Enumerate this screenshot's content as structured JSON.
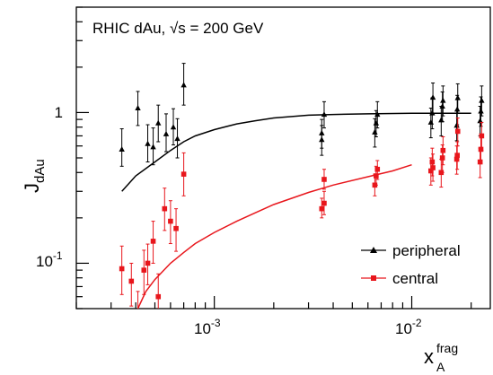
{
  "chart_data": {
    "type": "scatter",
    "title": "",
    "annotation": "RHIC dAu, √s = 200 GeV",
    "xlabel": {
      "base": "x",
      "sub": "A",
      "sup": "frag"
    },
    "ylabel": {
      "base": "J",
      "sub": "dAu"
    },
    "xscale": "log",
    "yscale": "log",
    "xlim": [
      0.0002,
      0.025
    ],
    "ylim": [
      0.05,
      5
    ],
    "x_ticks": [
      {
        "value": 0.001,
        "base": "10",
        "exp": "-3"
      },
      {
        "value": 0.01,
        "base": "10",
        "exp": "-2"
      }
    ],
    "y_ticks": [
      {
        "value": 0.1,
        "base": "10",
        "exp": "-1"
      },
      {
        "value": 1,
        "label": "1"
      }
    ],
    "grid": false,
    "legend_position": "bottom-right",
    "series": [
      {
        "name": "peripheral",
        "marker": "triangle",
        "color": "#000000",
        "points": [
          {
            "x": 0.00034,
            "y": 0.57,
            "lo": 0.44,
            "hi": 0.78
          },
          {
            "x": 0.00041,
            "y": 1.07,
            "lo": 0.82,
            "hi": 1.38
          },
          {
            "x": 0.00046,
            "y": 0.62,
            "lo": 0.47,
            "hi": 0.83
          },
          {
            "x": 0.00049,
            "y": 0.59,
            "lo": 0.45,
            "hi": 0.79
          },
          {
            "x": 0.00052,
            "y": 0.85,
            "lo": 0.64,
            "hi": 1.12
          },
          {
            "x": 0.00057,
            "y": 0.72,
            "lo": 0.55,
            "hi": 0.98
          },
          {
            "x": 0.00062,
            "y": 0.8,
            "lo": 0.61,
            "hi": 1.06
          },
          {
            "x": 0.00065,
            "y": 0.67,
            "lo": 0.5,
            "hi": 0.91
          },
          {
            "x": 0.0007,
            "y": 1.52,
            "lo": 1.12,
            "hi": 2.12
          },
          {
            "x": 0.0035,
            "y": 0.73,
            "lo": 0.58,
            "hi": 0.9
          },
          {
            "x": 0.0035,
            "y": 0.66,
            "lo": 0.52,
            "hi": 0.82
          },
          {
            "x": 0.0036,
            "y": 0.97,
            "lo": 0.79,
            "hi": 1.18
          },
          {
            "x": 0.0065,
            "y": 0.74,
            "lo": 0.59,
            "hi": 0.91
          },
          {
            "x": 0.0066,
            "y": 0.85,
            "lo": 0.69,
            "hi": 1.03
          },
          {
            "x": 0.0067,
            "y": 0.97,
            "lo": 0.79,
            "hi": 1.18
          },
          {
            "x": 0.0125,
            "y": 0.86,
            "lo": 0.68,
            "hi": 1.07
          },
          {
            "x": 0.0127,
            "y": 0.99,
            "lo": 0.78,
            "hi": 1.25
          },
          {
            "x": 0.0128,
            "y": 1.26,
            "lo": 0.98,
            "hi": 1.57
          },
          {
            "x": 0.0141,
            "y": 0.89,
            "lo": 0.7,
            "hi": 1.1
          },
          {
            "x": 0.0143,
            "y": 1.1,
            "lo": 0.87,
            "hi": 1.37
          },
          {
            "x": 0.0144,
            "y": 1.2,
            "lo": 0.95,
            "hi": 1.5
          },
          {
            "x": 0.0169,
            "y": 0.82,
            "lo": 0.65,
            "hi": 1.03
          },
          {
            "x": 0.017,
            "y": 1.05,
            "lo": 0.83,
            "hi": 1.3
          },
          {
            "x": 0.0171,
            "y": 1.25,
            "lo": 0.99,
            "hi": 1.55
          },
          {
            "x": 0.0222,
            "y": 0.88,
            "lo": 0.7,
            "hi": 1.1
          },
          {
            "x": 0.0224,
            "y": 1.02,
            "lo": 0.81,
            "hi": 1.27
          },
          {
            "x": 0.0226,
            "y": 1.2,
            "lo": 0.95,
            "hi": 1.5
          }
        ]
      },
      {
        "name": "central",
        "marker": "square",
        "color": "#e8161c",
        "points": [
          {
            "x": 0.00034,
            "y": 0.092,
            "lo": 0.062,
            "hi": 0.13
          },
          {
            "x": 0.00038,
            "y": 0.076,
            "lo": 0.052,
            "hi": 0.1
          },
          {
            "x": 0.00041,
            "y": 0.049,
            "lo": 0.035,
            "hi": 0.065
          },
          {
            "x": 0.00044,
            "y": 0.09,
            "lo": 0.062,
            "hi": 0.122
          },
          {
            "x": 0.00046,
            "y": 0.1,
            "lo": 0.072,
            "hi": 0.134
          },
          {
            "x": 0.00049,
            "y": 0.14,
            "lo": 0.1,
            "hi": 0.19
          },
          {
            "x": 0.00052,
            "y": 0.06,
            "lo": 0.04,
            "hi": 0.085
          },
          {
            "x": 0.00056,
            "y": 0.23,
            "lo": 0.165,
            "hi": 0.315
          },
          {
            "x": 0.0006,
            "y": 0.19,
            "lo": 0.135,
            "hi": 0.26
          },
          {
            "x": 0.00064,
            "y": 0.17,
            "lo": 0.12,
            "hi": 0.23
          },
          {
            "x": 0.0007,
            "y": 0.39,
            "lo": 0.28,
            "hi": 0.54
          },
          {
            "x": 0.0035,
            "y": 0.23,
            "lo": 0.2,
            "hi": 0.27
          },
          {
            "x": 0.0036,
            "y": 0.25,
            "lo": 0.21,
            "hi": 0.3
          },
          {
            "x": 0.0036,
            "y": 0.36,
            "lo": 0.31,
            "hi": 0.42
          },
          {
            "x": 0.0065,
            "y": 0.33,
            "lo": 0.28,
            "hi": 0.39
          },
          {
            "x": 0.0066,
            "y": 0.38,
            "lo": 0.33,
            "hi": 0.44
          },
          {
            "x": 0.0067,
            "y": 0.42,
            "lo": 0.36,
            "hi": 0.48
          },
          {
            "x": 0.0125,
            "y": 0.41,
            "lo": 0.33,
            "hi": 0.5
          },
          {
            "x": 0.0127,
            "y": 0.47,
            "lo": 0.38,
            "hi": 0.58
          },
          {
            "x": 0.0128,
            "y": 0.43,
            "lo": 0.35,
            "hi": 0.53
          },
          {
            "x": 0.0141,
            "y": 0.4,
            "lo": 0.32,
            "hi": 0.49
          },
          {
            "x": 0.0143,
            "y": 0.5,
            "lo": 0.4,
            "hi": 0.61
          },
          {
            "x": 0.0144,
            "y": 0.56,
            "lo": 0.45,
            "hi": 0.69
          },
          {
            "x": 0.0169,
            "y": 0.49,
            "lo": 0.39,
            "hi": 0.6
          },
          {
            "x": 0.017,
            "y": 0.52,
            "lo": 0.42,
            "hi": 0.64
          },
          {
            "x": 0.0171,
            "y": 0.75,
            "lo": 0.6,
            "hi": 0.92
          },
          {
            "x": 0.0222,
            "y": 0.47,
            "lo": 0.37,
            "hi": 0.58
          },
          {
            "x": 0.0224,
            "y": 0.57,
            "lo": 0.46,
            "hi": 0.7
          },
          {
            "x": 0.0226,
            "y": 0.7,
            "lo": 0.56,
            "hi": 0.86
          }
        ]
      }
    ],
    "curves": [
      {
        "series": "peripheral",
        "color": "#000000",
        "points": [
          [
            0.00034,
            0.3
          ],
          [
            0.0004,
            0.38
          ],
          [
            0.0005,
            0.47
          ],
          [
            0.0006,
            0.56
          ],
          [
            0.0007,
            0.64
          ],
          [
            0.0008,
            0.7
          ],
          [
            0.001,
            0.77
          ],
          [
            0.0013,
            0.84
          ],
          [
            0.0016,
            0.88
          ],
          [
            0.002,
            0.92
          ],
          [
            0.003,
            0.96
          ],
          [
            0.004,
            0.97
          ],
          [
            0.006,
            0.98
          ],
          [
            0.01,
            0.99
          ],
          [
            0.02,
            0.99
          ]
        ]
      },
      {
        "series": "central",
        "color": "#e8161c",
        "points": [
          [
            0.00041,
            0.05
          ],
          [
            0.00045,
            0.065
          ],
          [
            0.0005,
            0.078
          ],
          [
            0.0006,
            0.1
          ],
          [
            0.0007,
            0.118
          ],
          [
            0.0008,
            0.135
          ],
          [
            0.001,
            0.16
          ],
          [
            0.0013,
            0.19
          ],
          [
            0.0016,
            0.215
          ],
          [
            0.002,
            0.245
          ],
          [
            0.003,
            0.295
          ],
          [
            0.004,
            0.33
          ],
          [
            0.006,
            0.375
          ],
          [
            0.008,
            0.41
          ],
          [
            0.01,
            0.45
          ]
        ]
      }
    ]
  }
}
